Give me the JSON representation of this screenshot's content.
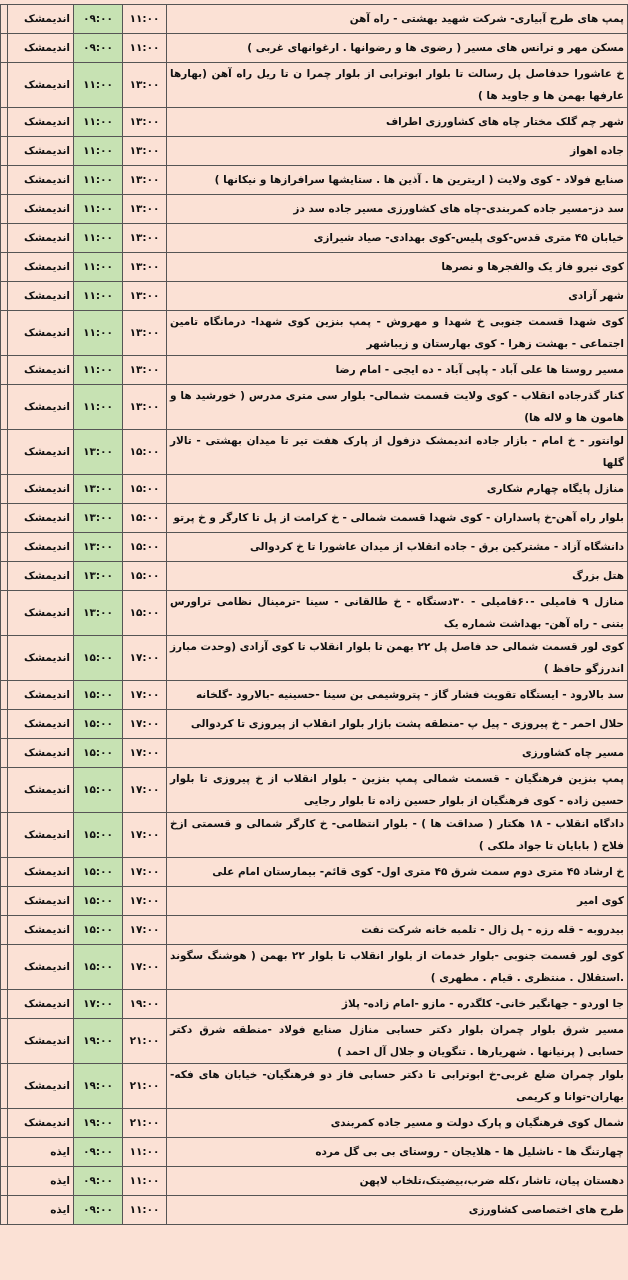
{
  "table": {
    "rows": [
      [
        "پمپ های طرح آبیاری- شرکت شهید بهشتی - راه آهن",
        "۱۱:۰۰",
        "۰۹:۰۰",
        "اندیمشک"
      ],
      [
        "مسکن مهر و ترانس های مسیر ( رضوی ها و رضوانها . ارغوانهای غربی )",
        "۱۱:۰۰",
        "۰۹:۰۰",
        "اندیمشک"
      ],
      [
        "خ عاشورا حدفاصل پل رسالت تا بلوار ابوترابی از بلوار چمرا ن تا ریل راه آهن (بهارها عارفها بهمن ها و جاوید ها )",
        "۱۳:۰۰",
        "۱۱:۰۰",
        "اندیمشک"
      ],
      [
        "شهر چم گلک مختار چاه های کشاورزی اطراف",
        "۱۳:۰۰",
        "۱۱:۰۰",
        "اندیمشک"
      ],
      [
        "جاده اهواز",
        "۱۳:۰۰",
        "۱۱:۰۰",
        "اندیمشک"
      ],
      [
        "صنایع فولاد - کوی ولایت ( اریترین ها . آذین ها . ستایشها سرافرازها و نیکانها )",
        "۱۳:۰۰",
        "۱۱:۰۰",
        "اندیمشک"
      ],
      [
        "سد دز-مسیر جاده کمربندی-چاه های کشاورزی مسیر جاده سد دز",
        "۱۳:۰۰",
        "۱۱:۰۰",
        "اندیمشک"
      ],
      [
        "خیابان ۴۵ متری قدس-کوی پلیس-کوی بهدادی- صیاد شیرازی",
        "۱۳:۰۰",
        "۱۱:۰۰",
        "اندیمشک"
      ],
      [
        "کوی نیرو فاز یک والفجرها و نصرها",
        "۱۳:۰۰",
        "۱۱:۰۰",
        "اندیمشک"
      ],
      [
        "شهر آزادی",
        "۱۳:۰۰",
        "۱۱:۰۰",
        "اندیمشک"
      ],
      [
        "کوی شهدا قسمت جنوبی خ شهدا و مهروش - پمپ بنزین کوی شهدا- درمانگاه تامین اجتماعی - بهشت زهرا - کوی بهارستان و زیباشهر",
        "۱۳:۰۰",
        "۱۱:۰۰",
        "اندیمشک"
      ],
      [
        "مسیر روستا ها علی آباد - پاپی آباد - ده ایجی - امام رضا",
        "۱۳:۰۰",
        "۱۱:۰۰",
        "اندیمشک"
      ],
      [
        "کنار گذرجاده انقلاب - کوی ولایت قسمت شمالی- بلوار سی متری مدرس ( خورشید ها و هامون ها و لاله ها)",
        "۱۳:۰۰",
        "۱۱:۰۰",
        "اندیمشک"
      ],
      [
        "لوانتور - خ امام - بازار جاده اندیمشک دزفول از پارک هفت تیر تا میدان بهشتی - تالار گلها",
        "۱۵:۰۰",
        "۱۳:۰۰",
        "اندیمشک"
      ],
      [
        "منازل پایگاه چهارم شکاری",
        "۱۵:۰۰",
        "۱۳:۰۰",
        "اندیمشک"
      ],
      [
        "بلوار راه آهن-خ پاسداران - کوی شهدا قسمت شمالی - خ کرامت از پل تا کارگر و خ پرتو",
        "۱۵:۰۰",
        "۱۳:۰۰",
        "اندیمشک"
      ],
      [
        "دانشگاه آزاد - مشترکین برق - جاده انقلاب از میدان عاشورا تا خ کردوالی",
        "۱۵:۰۰",
        "۱۳:۰۰",
        "اندیمشک"
      ],
      [
        "هتل بزرگ",
        "۱۵:۰۰",
        "۱۳:۰۰",
        "اندیمشک"
      ],
      [
        "منازل ۹ فامیلی -۶۰فامیلی - ۳۰دستگاه - خ طالقانی - سینا -ترمینال نظامی تراورس بتنی - راه آهن- بهداشت شماره یک",
        "۱۵:۰۰",
        "۱۳:۰۰",
        "اندیمشک"
      ],
      [
        "کوی لور قسمت شمالی حد فاصل پل ۲۲ بهمن تا بلوار انقلاب تا کوی آزادی (وحدت مبارز اندرزگو حافظ )",
        "۱۷:۰۰",
        "۱۵:۰۰",
        "اندیمشک"
      ],
      [
        "سد بالارود - ایستگاه تقویت فشار گاز - پتروشیمی بن سینا -حسینیه -بالارود -گلخانه",
        "۱۷:۰۰",
        "۱۵:۰۰",
        "اندیمشک"
      ],
      [
        "حلال احمر - خ پیروزی - پیل پ -منطقه پشت بازار بلوار انقلاب از پیروزی تا کردوالی",
        "۱۷:۰۰",
        "۱۵:۰۰",
        "اندیمشک"
      ],
      [
        "مسیر چاه کشاورزی",
        "۱۷:۰۰",
        "۱۵:۰۰",
        "اندیمشک"
      ],
      [
        "پمپ بنزین فرهنگیان - قسمت شمالی پمپ بنزین - بلوار انقلاب از خ پیروزی تا بلوار حسین زاده - کوی فرهنگیان از بلوار حسین زاده تا بلوار رجایی",
        "۱۷:۰۰",
        "۱۵:۰۰",
        "اندیمشک"
      ],
      [
        "دادگاه انقلاب - ۱۸ هکتار ( صداقت ها ) - بلوار انتظامی- خ کارگر شمالی و قسمتی ازخ فلاح ( بابایان تا جواد ملکی )",
        "۱۷:۰۰",
        "۱۵:۰۰",
        "اندیمشک"
      ],
      [
        "خ ارشاد ۴۵ متری دوم سمت شرق ۴۵ متری اول- کوی قائم- بیمارستان امام علی",
        "۱۷:۰۰",
        "۱۵:۰۰",
        "اندیمشک"
      ],
      [
        "کوی امیر",
        "۱۷:۰۰",
        "۱۵:۰۰",
        "اندیمشک"
      ],
      [
        "بیدروبه - قله رزه - پل زال - تلمبه خانه شرکت نفت",
        "۱۷:۰۰",
        "۱۵:۰۰",
        "اندیمشک"
      ],
      [
        "کوی لور قسمت جنوبی -بلوار خدمات از بلوار انقلاب تا بلوار ۲۲ بهمن ( هوشنگ سگوند .استقلال . منتظری . قیام . مطهری )",
        "۱۷:۰۰",
        "۱۵:۰۰",
        "اندیمشک"
      ],
      [
        "جا اوردو - جهانگیر خانی- کلگدره - مازو -امام زاده- پلاژ",
        "۱۹:۰۰",
        "۱۷:۰۰",
        "اندیمشک"
      ],
      [
        "مسیر شرق بلوار چمران بلوار دکتر حسابی منازل صنایع فولاد -منطقه شرق دکتر حسابی ( پرنیانها . شهریارها . تنگویان و جلال آل احمد )",
        "۲۱:۰۰",
        "۱۹:۰۰",
        "اندیمشک"
      ],
      [
        "بلوار چمران ضلع غربی-خ ابوترابی تا دکتر حسابی فاز دو فرهنگیان- خیابان های فکه-بهاران-توانا و کریمی",
        "۲۱:۰۰",
        "۱۹:۰۰",
        "اندیمشک"
      ],
      [
        "شمال کوی فرهنگیان و پارک دولت و مسیر جاده کمربندی",
        "۲۱:۰۰",
        "۱۹:۰۰",
        "اندیمشک"
      ],
      [
        "چهارتنگ ها - ناشلیل ها - هلایجان - روستای بی بی گل مرده",
        "۱۱:۰۰",
        "۰۹:۰۰",
        "ایذه"
      ],
      [
        "دهستان پیان، تاشار ،کله ضرب،بیضیتک،تلخاب لاپهن",
        "۱۱:۰۰",
        "۰۹:۰۰",
        "ایذه"
      ],
      [
        "طرح های اختصاصی کشاورزی",
        "۱۱:۰۰",
        "۰۹:۰۰",
        "ایذه"
      ]
    ]
  }
}
